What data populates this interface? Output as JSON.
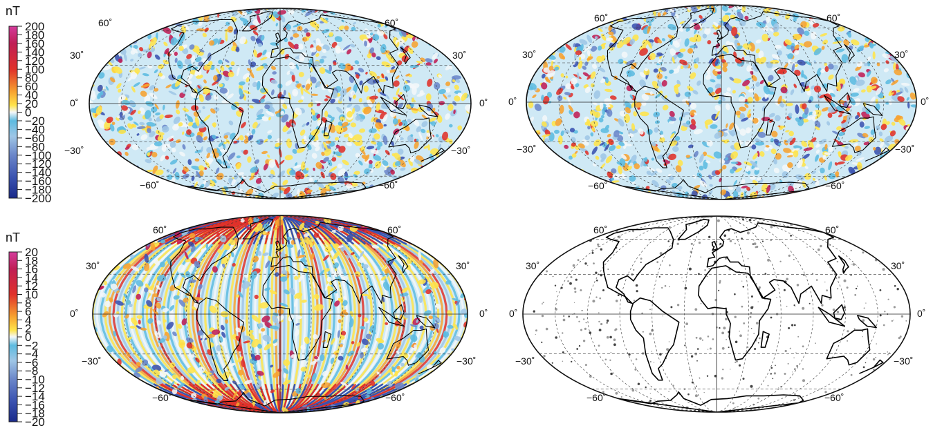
{
  "colorbars": [
    {
      "unit": "nT",
      "ticks": [
        "200",
        "180",
        "160",
        "140",
        "120",
        "100",
        "80",
        "60",
        "40",
        "20",
        "0",
        "−20",
        "−40",
        "−60",
        "−80",
        "−100",
        "−120",
        "−140",
        "−160",
        "−180",
        "−200"
      ]
    },
    {
      "unit": "nT",
      "ticks": [
        "20",
        "18",
        "16",
        "14",
        "12",
        "10",
        "8",
        "6",
        "4",
        "2",
        "0",
        "−2",
        "−4",
        "−6",
        "−8",
        "−10",
        "−12",
        "−14",
        "−16",
        "−18",
        "−20"
      ]
    }
  ],
  "colormap": [
    "#1a2a8a",
    "#3a52b0",
    "#6b86c9",
    "#9fc6e6",
    "#5dbbe0",
    "#f4f7f9",
    "#ffe44a",
    "#f7a230",
    "#e0312a",
    "#c01e55",
    "#d43c9c"
  ],
  "maps": [
    {
      "name": "top-left",
      "style": "anomaly",
      "lat_labels": {
        "n60": "60˚",
        "n30": "30˚",
        "eq": "0˚",
        "s30": "−30˚",
        "s60": "−60˚"
      }
    },
    {
      "name": "top-right",
      "style": "anomaly",
      "lat_labels": {
        "n60": "60˚",
        "n30": "30˚",
        "eq": "0˚",
        "s30": "−30˚",
        "s60": "−60˚"
      }
    },
    {
      "name": "bottom-left",
      "style": "stripes",
      "lat_labels": {
        "n60": "60˚",
        "n30": "30˚",
        "eq": "0˚",
        "s30": "−30˚",
        "s60": "−60˚"
      }
    },
    {
      "name": "bottom-right",
      "style": "sparse",
      "lat_labels": {
        "n60": "60˚",
        "n30": "30˚",
        "eq": "0˚",
        "s30": "−30˚",
        "s60": "−60˚"
      }
    }
  ]
}
